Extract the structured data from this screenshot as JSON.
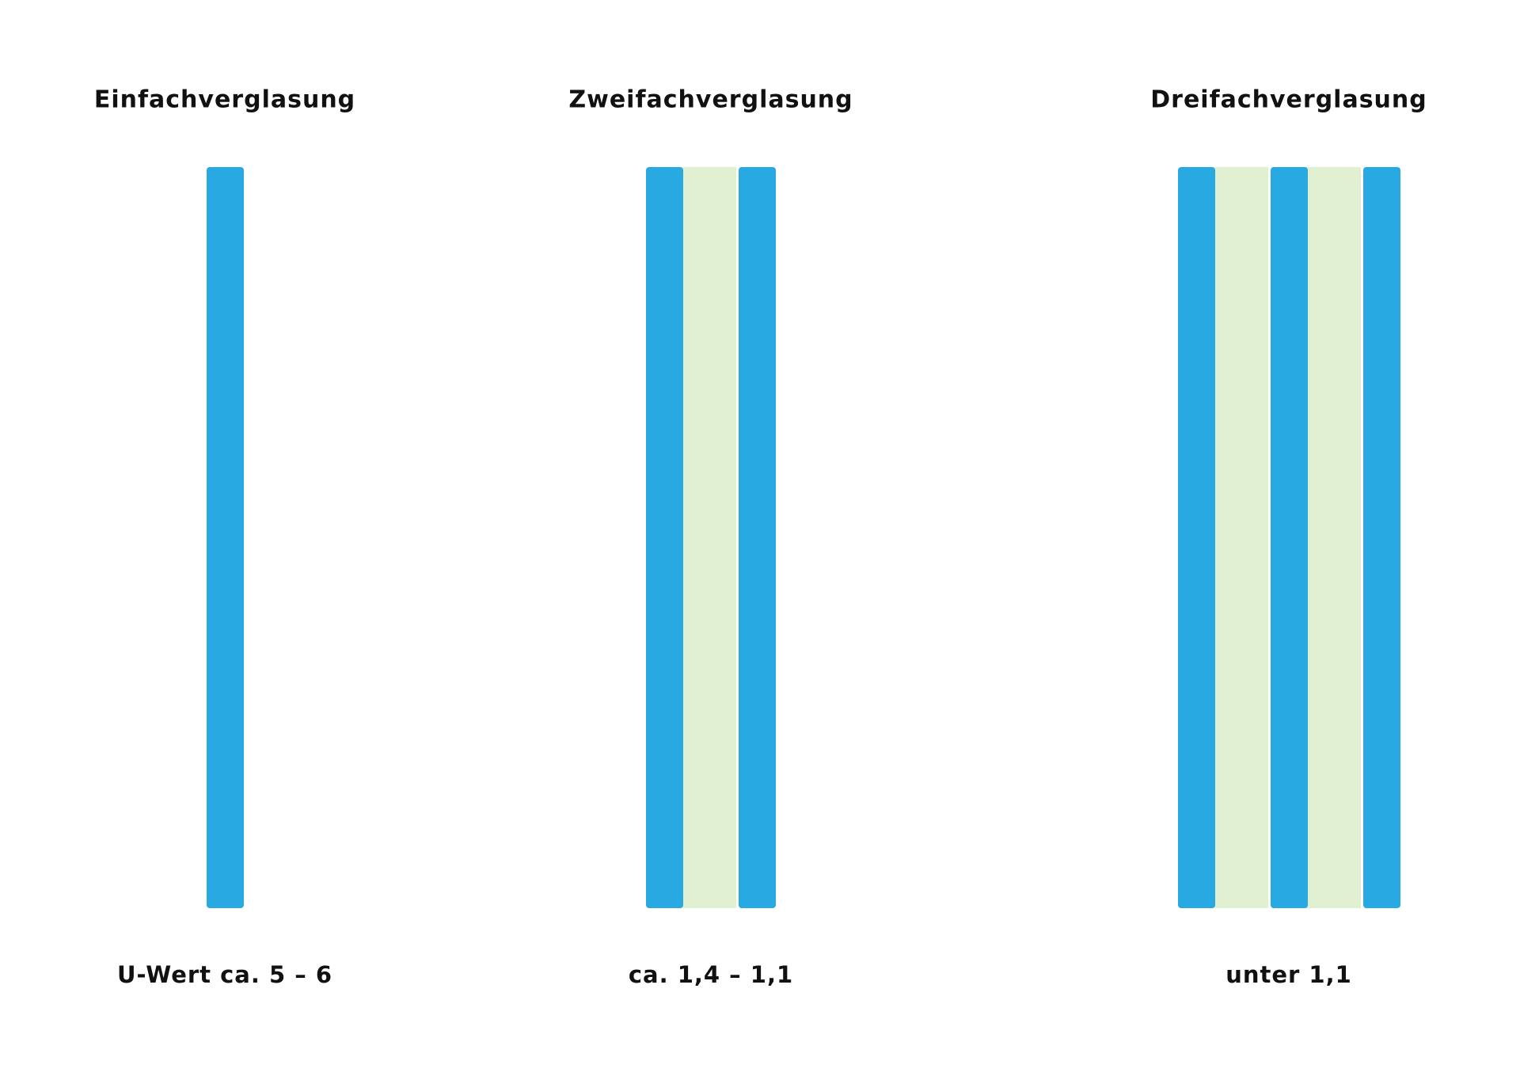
{
  "colors": {
    "glass": "#29a9e1",
    "gap": "#e1f0d0"
  },
  "columns": [
    {
      "title": "Einfachverglasung",
      "label": "U-Wert ca. 5 – 6",
      "panes": 1
    },
    {
      "title": "Zweifachverglasung",
      "label": "ca. 1,4 – 1,1",
      "panes": 2
    },
    {
      "title": "Dreifachverglasung",
      "label": "unter 1,1",
      "panes": 3
    }
  ]
}
